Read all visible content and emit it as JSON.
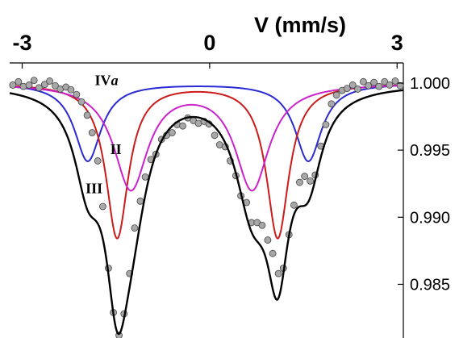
{
  "chart_data": {
    "type": "line",
    "xlabel": "V (mm/s)",
    "x_ticks": [
      "-3",
      "0",
      "3"
    ],
    "y_ticks": [
      "1.000",
      "0.995",
      "0.990",
      "0.985"
    ],
    "xlim": [
      -3.2,
      3.1
    ],
    "ylim": [
      0.981,
      1.0015
    ],
    "annotations": [
      {
        "label_main": "IV",
        "label_sub": "a",
        "x": -1.65,
        "y": 0.99985
      },
      {
        "label_main": "II",
        "label_sub": "",
        "x": -1.5,
        "y": 0.9947
      },
      {
        "label_main": "III",
        "label_sub": "",
        "x": -1.85,
        "y": 0.9918
      }
    ],
    "components": [
      {
        "id": "IVa",
        "color": "#2a2ad4",
        "lines": [
          {
            "center": -1.95,
            "depth": 0.0058,
            "hwhm": 0.26
          },
          {
            "center": 1.58,
            "depth": 0.0058,
            "hwhm": 0.26
          }
        ]
      },
      {
        "id": "III",
        "color": "#cc1a1a",
        "lines": [
          {
            "center": -1.48,
            "depth": 0.0115,
            "hwhm": 0.22
          },
          {
            "center": 1.09,
            "depth": 0.0115,
            "hwhm": 0.22
          }
        ]
      },
      {
        "id": "II",
        "color": "#cc22cc",
        "lines": [
          {
            "center": -1.26,
            "depth": 0.0078,
            "hwhm": 0.33
          },
          {
            "center": 0.68,
            "depth": 0.0078,
            "hwhm": 0.33
          }
        ]
      }
    ],
    "fit_color": "#000000",
    "data_color": "#a8a8a8",
    "data_points": [
      [
        -3.15,
        0.99985
      ],
      [
        -3.06,
        1.0001
      ],
      [
        -2.98,
        0.99975
      ],
      [
        -2.89,
        0.99985
      ],
      [
        -2.81,
        1.0002
      ],
      [
        -2.73,
        0.99965
      ],
      [
        -2.64,
        0.9999
      ],
      [
        -2.56,
        1.00015
      ],
      [
        -2.47,
        0.9998
      ],
      [
        -2.39,
        0.99955
      ],
      [
        -2.3,
        0.9997
      ],
      [
        -2.22,
        0.9995
      ],
      [
        -2.13,
        0.99915
      ],
      [
        -2.05,
        0.9986
      ],
      [
        -1.96,
        0.9976
      ],
      [
        -1.88,
        0.9963
      ],
      [
        -1.79,
        0.9942
      ],
      [
        -1.71,
        0.9908
      ],
      [
        -1.62,
        0.9862
      ],
      [
        -1.54,
        0.9829
      ],
      [
        -1.45,
        0.9812
      ],
      [
        -1.37,
        0.9828
      ],
      [
        -1.28,
        0.9858
      ],
      [
        -1.2,
        0.9892
      ],
      [
        -1.11,
        0.9912
      ],
      [
        -1.03,
        0.993
      ],
      [
        -0.94,
        0.9943
      ],
      [
        -0.86,
        0.9947
      ],
      [
        -0.77,
        0.9958
      ],
      [
        -0.69,
        0.9961
      ],
      [
        -0.6,
        0.9963
      ],
      [
        -0.52,
        0.9969
      ],
      [
        -0.43,
        0.9968
      ],
      [
        -0.35,
        0.9974
      ],
      [
        -0.26,
        0.9972
      ],
      [
        -0.18,
        0.997
      ],
      [
        -0.09,
        0.99715
      ],
      [
        -0.01,
        0.99695
      ],
      [
        0.08,
        0.9961
      ],
      [
        0.16,
        0.9954
      ],
      [
        0.25,
        0.99525
      ],
      [
        0.33,
        0.9942
      ],
      [
        0.42,
        0.9931
      ],
      [
        0.5,
        0.9916
      ],
      [
        0.59,
        0.9911
      ],
      [
        0.67,
        0.9896
      ],
      [
        0.76,
        0.9896
      ],
      [
        0.84,
        0.9894
      ],
      [
        0.93,
        0.9883
      ],
      [
        1.01,
        0.9873
      ],
      [
        1.1,
        0.9858
      ],
      [
        1.18,
        0.9862
      ],
      [
        1.27,
        0.9887
      ],
      [
        1.35,
        0.9909
      ],
      [
        1.44,
        0.9926
      ],
      [
        1.52,
        0.99305
      ],
      [
        1.61,
        0.9927
      ],
      [
        1.69,
        0.99315
      ],
      [
        1.78,
        0.9953
      ],
      [
        1.86,
        0.9969
      ],
      [
        1.95,
        0.99845
      ],
      [
        2.03,
        0.9991
      ],
      [
        2.12,
        0.99945
      ],
      [
        2.2,
        0.9996
      ],
      [
        2.29,
        0.99985
      ],
      [
        2.37,
        0.99955
      ],
      [
        2.46,
        1.0001
      ],
      [
        2.54,
        0.9998
      ],
      [
        2.63,
        1.00005
      ],
      [
        2.71,
        0.99975
      ],
      [
        2.8,
        1.0001
      ],
      [
        2.88,
        0.99985
      ],
      [
        2.97,
        1.00015
      ],
      [
        3.05,
        0.9998
      ]
    ]
  }
}
